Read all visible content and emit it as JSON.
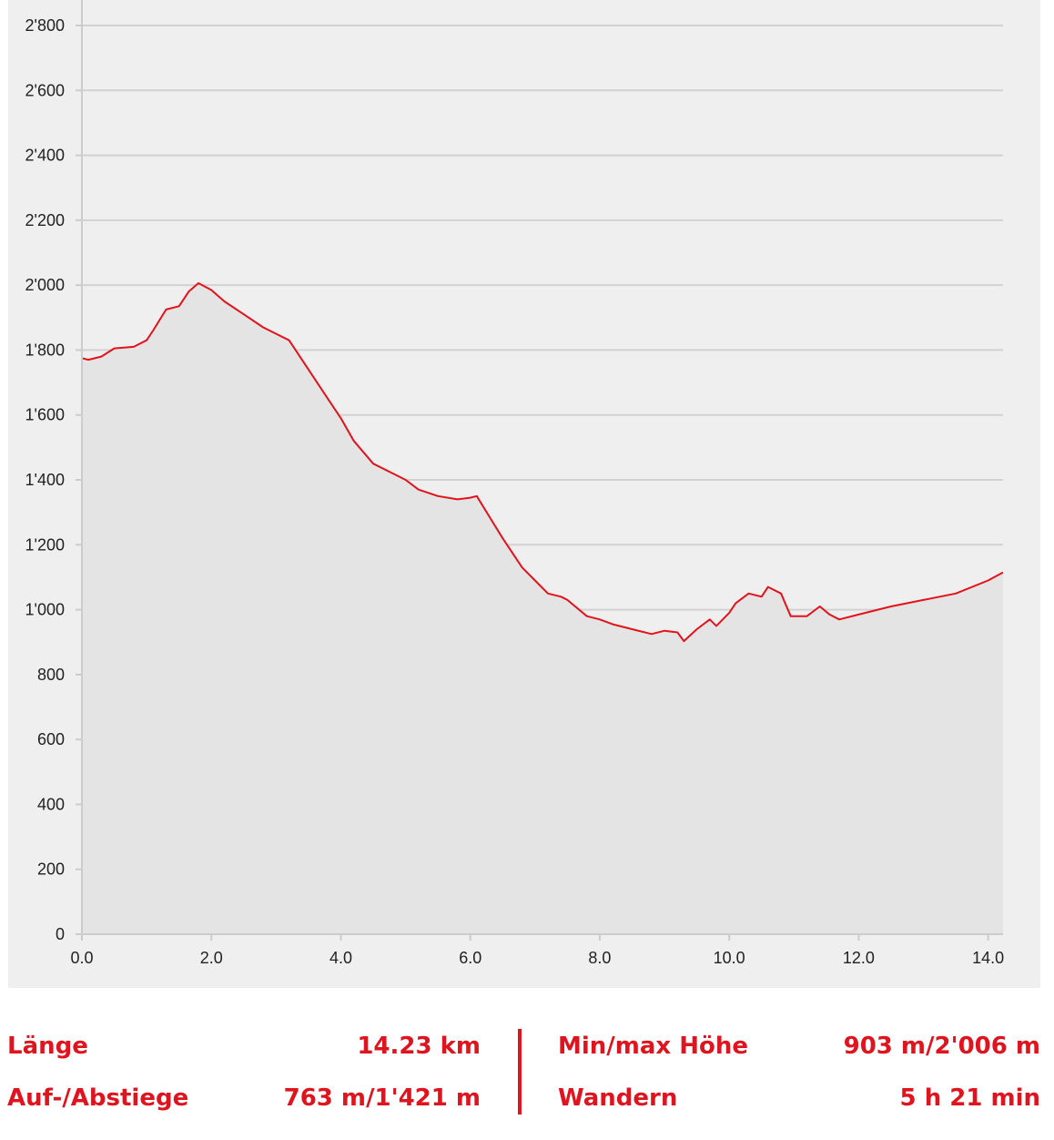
{
  "colors": {
    "line": "#e3121b",
    "fill": "#e4e4e4",
    "panel": "#efefef",
    "grid": "#d2d2d2",
    "stat_text": "#e0141e"
  },
  "chart_data": {
    "type": "area",
    "xlabel": "",
    "ylabel": "",
    "xlim": [
      0,
      14.23
    ],
    "ylim": [
      0,
      2800
    ],
    "grid": true,
    "x_ticks": [
      "0.0",
      "2.0",
      "4.0",
      "6.0",
      "8.0",
      "10.0",
      "12.0",
      "14.0"
    ],
    "x_tick_values": [
      0,
      2,
      4,
      6,
      8,
      10,
      12,
      14
    ],
    "y_ticks": [
      "0",
      "200",
      "400",
      "600",
      "800",
      "1'000",
      "1'200",
      "1'400",
      "1'600",
      "1'800",
      "2'000",
      "2'200",
      "2'400",
      "2'600",
      "2'800"
    ],
    "y_tick_values": [
      0,
      200,
      400,
      600,
      800,
      1000,
      1200,
      1400,
      1600,
      1800,
      2000,
      2200,
      2400,
      2600,
      2800
    ],
    "series": [
      {
        "x": [
          0,
          0.1,
          0.3,
          0.5,
          0.8,
          1.0,
          1.1,
          1.3,
          1.5,
          1.65,
          1.8,
          2.0,
          2.2,
          2.5,
          2.8,
          3.0,
          3.2,
          3.5,
          3.8,
          4.0,
          4.2,
          4.5,
          4.8,
          5.0,
          5.2,
          5.5,
          5.8,
          6.0,
          6.1,
          6.3,
          6.5,
          6.8,
          7.0,
          7.2,
          7.4,
          7.5,
          7.8,
          8.0,
          8.2,
          8.5,
          8.8,
          9.0,
          9.2,
          9.3,
          9.5,
          9.7,
          9.8,
          10.0,
          10.1,
          10.3,
          10.5,
          10.6,
          10.8,
          10.95,
          11.2,
          11.4,
          11.55,
          11.7,
          12.0,
          12.5,
          13.0,
          13.5,
          14.0,
          14.23
        ],
        "y": [
          1775,
          1770,
          1780,
          1805,
          1810,
          1830,
          1860,
          1925,
          1935,
          1980,
          2006,
          1985,
          1950,
          1910,
          1870,
          1850,
          1830,
          1740,
          1650,
          1590,
          1520,
          1450,
          1420,
          1400,
          1370,
          1350,
          1340,
          1345,
          1350,
          1285,
          1220,
          1130,
          1090,
          1050,
          1040,
          1030,
          980,
          970,
          955,
          940,
          925,
          935,
          930,
          903,
          940,
          970,
          950,
          990,
          1020,
          1050,
          1040,
          1070,
          1050,
          980,
          980,
          1010,
          985,
          970,
          985,
          1010,
          1030,
          1050,
          1090,
          1115
        ]
      }
    ]
  },
  "stats": {
    "length_label": "Länge",
    "length_value": "14.23 km",
    "updown_label": "Auf-/Abstiege",
    "updown_value": "763 m/1'421 m",
    "minmax_label": "Min/max Höhe",
    "minmax_value": "903 m/2'006 m",
    "hike_label": "Wandern",
    "hike_value": "5 h 21 min"
  }
}
